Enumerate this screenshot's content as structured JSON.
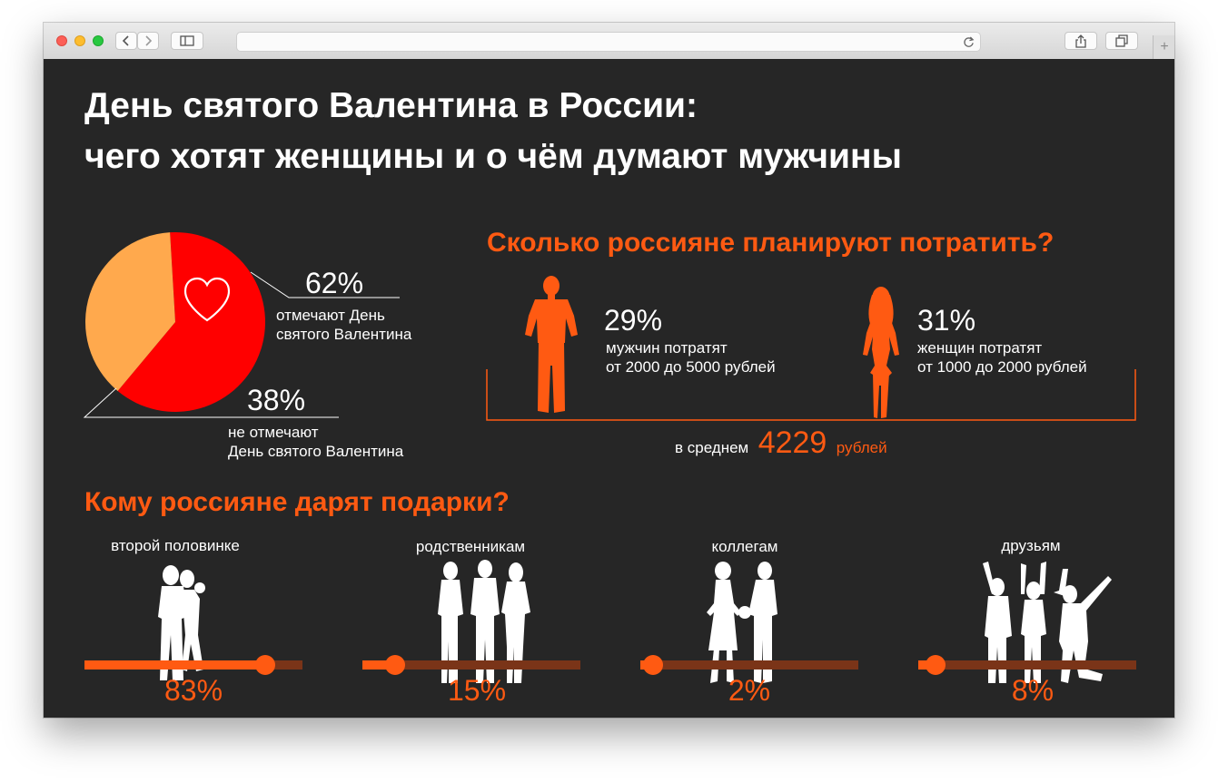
{
  "title": {
    "line1": "День святого Валентина в России:",
    "line2": "чего хотят женщины и о чём думают мужчины"
  },
  "celebrate": {
    "yes_pct": "62%",
    "yes_line1": "отмечают День",
    "yes_line2": "святого Валентина",
    "no_pct": "38%",
    "no_line1": "не отмечают",
    "no_line2": "День святого Валентина",
    "icon": "heart-icon"
  },
  "chart_data": {
    "type": "pie",
    "categories": [
      "отмечают День святого Валентина",
      "не отмечают День святого Валентина"
    ],
    "values": [
      62,
      38
    ],
    "colors": [
      "#ff0000",
      "#ffa94d"
    ]
  },
  "spending": {
    "heading": "Сколько россияне планируют потратить?",
    "men_pct": "29%",
    "men_line1": "мужчин  потратят",
    "men_line2": "от 2000 до 5000 рублей",
    "women_pct": "31%",
    "women_line1": "женщин потратят",
    "women_line2": "от 1000 до 2000 рублей",
    "avg_prefix": "в среднем",
    "avg_value": "4229",
    "avg_unit": "рублей"
  },
  "gifts": {
    "heading": "Кому россияне дарят подарки?",
    "items": [
      {
        "label": "второй половинке",
        "pct": "83%",
        "value": 0.83
      },
      {
        "label": "родственникам",
        "pct": "15%",
        "value": 0.15
      },
      {
        "label": "коллегам",
        "pct": "2%",
        "value": 0.02
      },
      {
        "label": "друзьям",
        "pct": "8%",
        "value": 0.08
      }
    ]
  },
  "colors": {
    "accent": "#ff5a12",
    "track": "#7a3418",
    "background": "#262626"
  }
}
